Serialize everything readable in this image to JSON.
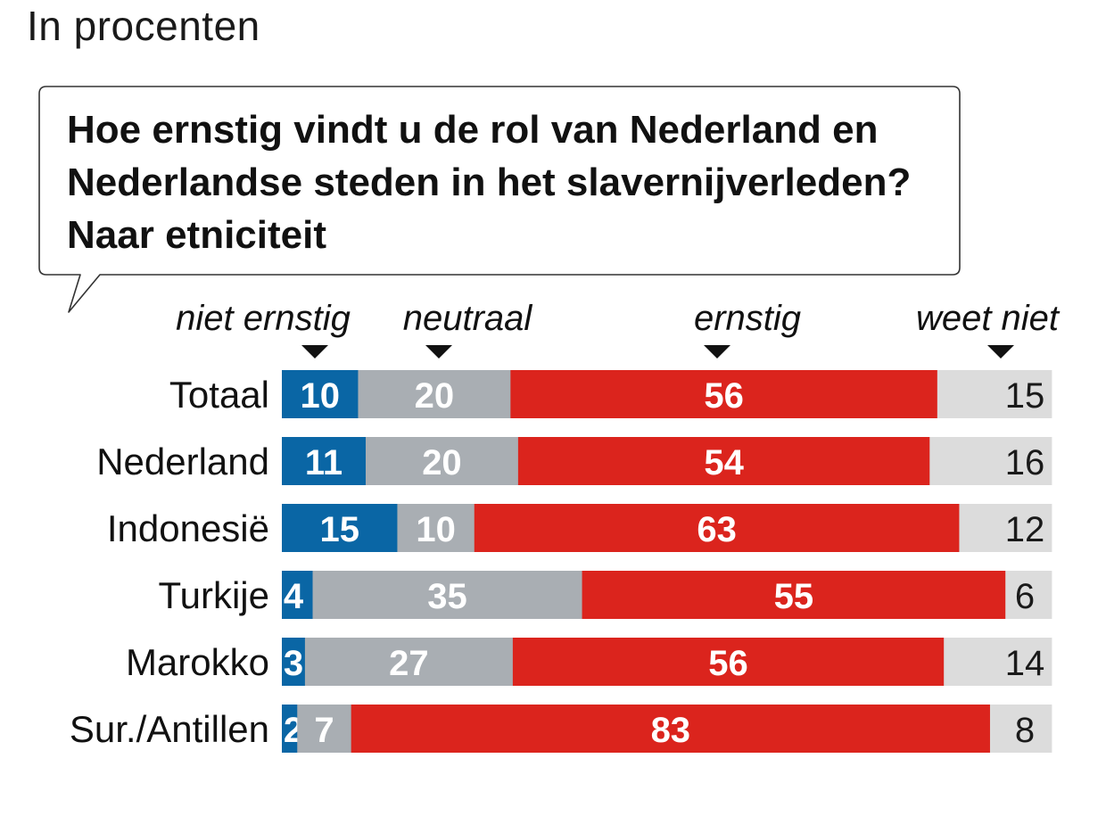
{
  "header": {
    "subtitle": "In procenten"
  },
  "chart_data": {
    "type": "bar",
    "stacked": true,
    "orientation": "horizontal",
    "unit": "percent",
    "title_lines": [
      "Hoe ernstig vindt u de rol van Nederland en",
      "Nederlandse steden in het slavernijverleden?",
      "Naar etniciteit"
    ],
    "categories": [
      "Totaal",
      "Nederland",
      "Indonesië",
      "Turkije",
      "Marokko",
      "Sur./Antillen"
    ],
    "series": [
      {
        "name": "niet ernstig",
        "color": "#0a66a5",
        "label_color": "#ffffff",
        "values": [
          10,
          11,
          15,
          4,
          3,
          2
        ]
      },
      {
        "name": "neutraal",
        "color": "#a9aeb3",
        "label_color": "#ffffff",
        "values": [
          20,
          20,
          10,
          35,
          27,
          7
        ]
      },
      {
        "name": "ernstig",
        "color": "#db241d",
        "label_color": "#ffffff",
        "values": [
          56,
          54,
          63,
          55,
          56,
          83
        ]
      },
      {
        "name": "weet niet",
        "color": "#dcdcdc",
        "label_color": "#1a1a1a",
        "values": [
          15,
          16,
          12,
          6,
          14,
          8
        ]
      }
    ]
  }
}
